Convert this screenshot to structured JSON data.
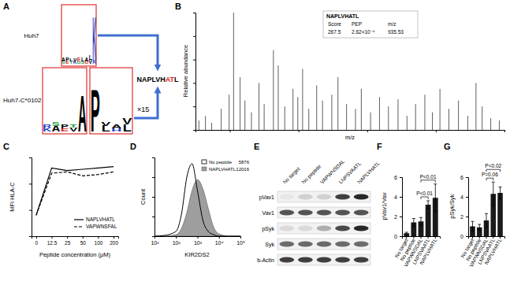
{
  "panel_labels": [
    "A",
    "B",
    "C",
    "D",
    "E",
    "F",
    "G"
  ],
  "panel_a": {
    "rows": [
      {
        "label": "Huh7",
        "logos": [
          [
            [
              {
                "letter": "S",
                "bits": 0.2,
                "color": "#1b9e3e"
              },
              {
                "letter": "A",
                "bits": 0.3,
                "color": "#000000"
              }
            ],
            [
              {
                "letter": "E",
                "bits": 0.2,
                "color": "#d62728"
              },
              {
                "letter": "P",
                "bits": 0.3,
                "color": "#000000"
              }
            ],
            [
              {
                "letter": "T",
                "bits": 0.2,
                "color": "#1b9e3e"
              },
              {
                "letter": "L",
                "bits": 0.2,
                "color": "#000000"
              }
            ],
            [
              {
                "letter": "K",
                "bits": 0.2,
                "color": "#2340c8"
              },
              {
                "letter": "V",
                "bits": 0.2,
                "color": "#000000"
              }
            ],
            [
              {
                "letter": "G",
                "bits": 0.2,
                "color": "#1b9e3e"
              },
              {
                "letter": "E",
                "bits": 0.3,
                "color": "#d62728"
              }
            ],
            [
              {
                "letter": "S",
                "bits": 0.2,
                "color": "#1b9e3e"
              },
              {
                "letter": "L",
                "bits": 0.3,
                "color": "#000000"
              }
            ],
            [
              {
                "letter": "D",
                "bits": 0.2,
                "color": "#d62728"
              },
              {
                "letter": "A",
                "bits": 0.3,
                "color": "#000000"
              }
            ],
            [
              {
                "letter": "V",
                "bits": 0.3,
                "color": "#000000"
              },
              {
                "letter": "L",
                "bits": 0.4,
                "color": "#000000"
              }
            ],
            [
              {
                "letter": "R",
                "bits": 0.3,
                "color": "#2340c8"
              },
              {
                "letter": "K",
                "bits": 3.4,
                "color": "#2340c8"
              }
            ]
          ]
        ]
      },
      {
        "label": "Huh7-C*0102",
        "logos": [
          [
            [
              {
                "letter": "K",
                "bits": 0.3,
                "color": "#2340c8"
              },
              {
                "letter": "R",
                "bits": 0.2,
                "color": "#2340c8"
              }
            ],
            [
              {
                "letter": "A",
                "bits": 0.4,
                "color": "#000000"
              },
              {
                "letter": "S",
                "bits": 0.3,
                "color": "#1b9e3e"
              }
            ],
            [
              {
                "letter": "E",
                "bits": 0.2,
                "color": "#d62728"
              },
              {
                "letter": "P",
                "bits": 0.3,
                "color": "#000000"
              }
            ],
            [
              {
                "letter": "V",
                "bits": 0.3,
                "color": "#000000"
              },
              {
                "letter": "T",
                "bits": 0.2,
                "color": "#1b9e3e"
              }
            ],
            [
              {
                "letter": "A",
                "bits": 2.6,
                "color": "#000000"
              }
            ]
          ],
          [
            [
              {
                "letter": "P",
                "bits": 3.0,
                "color": "#000000"
              }
            ],
            [
              {
                "letter": "L",
                "bits": 0.4,
                "color": "#000000"
              },
              {
                "letter": "V",
                "bits": 0.3,
                "color": "#000000"
              }
            ],
            [
              {
                "letter": "H",
                "bits": 0.2,
                "color": "#2340c8"
              },
              {
                "letter": "A",
                "bits": 0.3,
                "color": "#000000"
              }
            ],
            [
              {
                "letter": "L",
                "bits": 0.5,
                "color": "#000000"
              },
              {
                "letter": "V",
                "bits": 0.4,
                "color": "#000000"
              }
            ]
          ]
        ]
      }
    ],
    "multiplier": "×15",
    "peptide": [
      {
        "text": "NAPLVH",
        "color": "#000000"
      },
      {
        "text": "AT",
        "color": "#e0261b"
      },
      {
        "text": "L",
        "color": "#000000"
      }
    ]
  },
  "chart_data": [
    {
      "type": "stem",
      "x_label": "m/z",
      "y_label": "Relative abundance",
      "x": [
        110,
        129,
        147,
        175,
        198,
        211,
        230,
        244,
        263,
        285,
        300,
        327,
        341,
        360,
        384,
        398,
        412,
        430,
        453,
        470,
        497,
        515,
        540,
        566,
        583,
        610,
        636,
        662,
        690,
        716,
        741,
        768,
        790,
        812,
        838,
        866,
        893,
        917,
        935,
        960,
        985
      ],
      "values": [
        8,
        12,
        6,
        18,
        30,
        100,
        45,
        25,
        15,
        40,
        22,
        68,
        55,
        20,
        35,
        28,
        52,
        18,
        38,
        25,
        30,
        45,
        22,
        18,
        35,
        15,
        28,
        20,
        26,
        12,
        22,
        30,
        15,
        35,
        18,
        25,
        12,
        40,
        20,
        10,
        8
      ],
      "color": "#4d4d4d",
      "xlim": [
        100,
        1000
      ],
      "ylim": [
        0,
        100
      ],
      "xticks": [
        200,
        400,
        600,
        800,
        1000
      ],
      "yticks": [
        0,
        20,
        40,
        60,
        80,
        100
      ],
      "tick_labels": false,
      "annotations": [
        {
          "title": "NAPLVHATL",
          "columns": [
            "Score",
            "PEP",
            "m/z"
          ],
          "values": [
            "267.5",
            "2.62×10⁻⁶",
            "935.53"
          ]
        }
      ]
    },
    {
      "type": "line",
      "x_label": "Peptide concentration (μM)",
      "y_label": "MFI HLA-C",
      "categories": [
        "0",
        "12.5",
        "25",
        "50",
        "100",
        "200"
      ],
      "series": [
        {
          "name": "NAPLVHATL",
          "color": "#000000",
          "line_style": "solid",
          "values": [
            800,
            2600,
            2500,
            2550,
            2600,
            2650
          ]
        },
        {
          "name": "VAPWNSFAL",
          "color": "#000000",
          "line_style": "dashed",
          "values": [
            800,
            2400,
            2450,
            2300,
            2350,
            2450
          ]
        }
      ],
      "ylim": [
        0,
        3000
      ],
      "yticks": [
        0,
        1000,
        2000,
        3000
      ],
      "tick_labels": "x",
      "legend": "lower-right"
    },
    {
      "type": "area",
      "x_label": "KIR2DS2",
      "y_label": "Count",
      "log": "x",
      "x": [
        10,
        30,
        100,
        180,
        320,
        560,
        1000,
        1800,
        3200,
        5600,
        10000,
        30000,
        100000
      ],
      "series": [
        {
          "name": "No peptide",
          "mfi": 5876,
          "type": "line",
          "color": "#000000",
          "values": [
            0,
            1,
            6,
            28,
            75,
            92,
            58,
            20,
            6,
            2,
            0,
            0,
            0
          ]
        },
        {
          "name": "NAPLVHATL",
          "mfi": 12016,
          "type": "area",
          "color": "#9e9e9e",
          "values": [
            0,
            0,
            2,
            10,
            30,
            58,
            72,
            60,
            35,
            12,
            3,
            0,
            0
          ]
        }
      ],
      "xlim": [
        10,
        100000
      ],
      "ylim": [
        0,
        100
      ],
      "xticks": [
        {
          "value": 10,
          "label": "10¹"
        },
        {
          "value": 100,
          "label": "10²"
        },
        {
          "value": 1000,
          "label": "10³"
        },
        {
          "value": 10000,
          "label": "10⁴"
        },
        {
          "value": 100000,
          "label": "10⁵"
        }
      ],
      "yticks": [
        0,
        25,
        50,
        75,
        100
      ],
      "tick_labels": "x",
      "legend": "upper-right"
    },
    {
      "type": "bar",
      "y_label": "pVav1/Vav",
      "categories": [
        "No target",
        "No peptide",
        "VAPWNSDAL",
        "LNPSVAATL",
        "NAPLVHATL"
      ],
      "values": [
        0.3,
        1.4,
        1.5,
        3.2,
        3.9
      ],
      "errors": [
        0.1,
        0.4,
        0.4,
        0.4,
        1.4
      ],
      "color": "#1a1a1a",
      "ylim": [
        0,
        6
      ],
      "yticks": [
        0,
        2,
        4,
        6
      ],
      "annotations": [
        {
          "text": "P<0.01",
          "from": "VAPWNSDAL",
          "to": "LNPSVAATL"
        },
        {
          "text": "P<0.01",
          "from": "VAPWNSDAL",
          "to": "NAPLVHATL"
        }
      ]
    },
    {
      "type": "bar",
      "y_label": "pSyk/Syk",
      "categories": [
        "No target",
        "No peptide",
        "VAPWNSDAL",
        "LNPSVAATL",
        "NAPLVHATL"
      ],
      "values": [
        1.0,
        0.9,
        1.6,
        4.3,
        4.4
      ],
      "errors": [
        0.5,
        0.3,
        0.7,
        1.2,
        0.6
      ],
      "color": "#1a1a1a",
      "ylim": [
        0,
        6
      ],
      "yticks": [
        0,
        2,
        4,
        6
      ],
      "annotations": [
        {
          "text": "P=0.06",
          "from": "VAPWNSDAL",
          "to": "LNPSVAATL"
        },
        {
          "text": "P<0.02",
          "from": "VAPWNSDAL",
          "to": "NAPLVHATL"
        }
      ]
    }
  ],
  "panel_e": {
    "columns": [
      "No target",
      "No peptide",
      "VAPWNSDAL",
      "LNPSVAATL",
      "NAPLVHATL"
    ],
    "rows": [
      "pVav1",
      "Vav1",
      "pSyk",
      "Syk",
      "b-Actin"
    ],
    "band_intensity": [
      [
        0.05,
        0.15,
        0.15,
        0.8,
        0.9
      ],
      [
        0.7,
        0.7,
        0.7,
        0.7,
        0.7
      ],
      [
        0.1,
        0.1,
        0.3,
        0.75,
        0.9
      ],
      [
        0.6,
        0.6,
        0.6,
        0.6,
        0.6
      ],
      [
        0.8,
        0.8,
        0.8,
        0.8,
        0.8
      ]
    ]
  }
}
